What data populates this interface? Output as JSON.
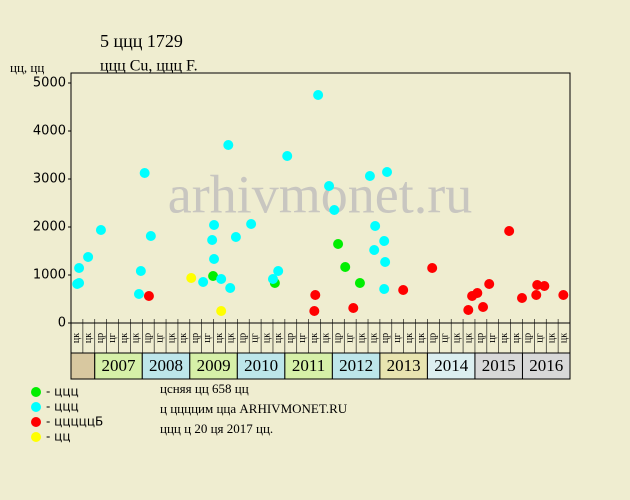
{
  "chart_data": {
    "type": "scatter",
    "title": "5 ццц 1729",
    "subtitle": "ццц Cu, ццц F.",
    "y_label": "цц, цц",
    "watermark": "arhivmonet.ru",
    "xlim": [
      2006.5,
      2017
    ],
    "ylim": [
      0,
      5000
    ],
    "yticks": [
      0,
      1000,
      2000,
      3000,
      4000,
      5000
    ],
    "xticks": [
      2007,
      2008,
      2009,
      2010,
      2011,
      2012,
      2013,
      2014,
      2015,
      2016
    ],
    "year_colors": [
      "#d6f0a8",
      "#bde6ea",
      "#d6f0a8",
      "#bde6ea",
      "#d6f0a8",
      "#bde6ea",
      "#e8e4b0",
      "#dceff0",
      "#d8d8d8",
      "#d8d8d8"
    ],
    "quarter_labels": [
      "цк",
      "цк",
      "цр",
      "цг",
      "цк",
      "цк",
      "цр",
      "цг",
      "цк",
      "цк",
      "цр",
      "цг",
      "цк",
      "цк",
      "цр",
      "цг",
      "цк",
      "цк",
      "цр",
      "цг",
      "цк",
      "цк",
      "цр",
      "цг",
      "цк",
      "цк",
      "цр",
      "цг",
      "цк",
      "цк",
      "цр",
      "цг",
      "цк",
      "цк",
      "цр",
      "цг",
      "цк",
      "цк",
      "цр",
      "цг",
      "цк",
      "цк"
    ],
    "series": [
      {
        "name": "- ццц",
        "color": "#00ee00",
        "x": [
          2009.49,
          2010.79,
          2012.12,
          2012.27,
          2012.58
        ],
        "values": [
          979,
          833,
          1646,
          1167,
          833
        ]
      },
      {
        "name": "- ццц",
        "color": "#00ffff",
        "x": [
          2006.63,
          2006.67,
          2006.67,
          2006.86,
          2007.13,
          2007.93,
          2007.97,
          2008.05,
          2008.18,
          2009.28,
          2009.47,
          2009.51,
          2009.51,
          2009.66,
          2009.81,
          2009.85,
          2009.97,
          2010.29,
          2010.75,
          2010.86,
          2011.05,
          2011.7,
          2011.93,
          2012.04,
          2012.79,
          2012.9,
          2012.88,
          2013.09,
          2013.11,
          2013.09,
          2013.15
        ],
        "values": [
          812,
          833,
          1146,
          1375,
          1937,
          604,
          1083,
          3125,
          1812,
          854,
          1729,
          2042,
          1333,
          917,
          3708,
          729,
          1792,
          2062,
          917,
          1083,
          3479,
          4750,
          2854,
          2354,
          3062,
          2021,
          1521,
          1708,
          1271,
          708,
          3146
        ]
      },
      {
        "name": "- цццццБ",
        "color": "#ff0000",
        "x": [
          2008.14,
          2011.64,
          2011.62,
          2012.44,
          2013.49,
          2014.1,
          2014.86,
          2014.94,
          2015.05,
          2015.17,
          2015.3,
          2015.72,
          2015.99,
          2016.29,
          2016.31,
          2016.46,
          2016.86
        ],
        "values": [
          562,
          583,
          250,
          312,
          688,
          1146,
          271,
          562,
          625,
          333,
          812,
          1917,
          521,
          583,
          792,
          771,
          583
        ]
      },
      {
        "name": "- цц",
        "color": "#ffff00",
        "x": [
          2009.03,
          2009.66
        ],
        "values": [
          938,
          250
        ]
      }
    ],
    "notes": [
      "цсняя цц 658 цц",
      "ц ццццим цца ARHIVMONET.RU",
      "ццц ц 20 ця 2017 цц."
    ]
  }
}
